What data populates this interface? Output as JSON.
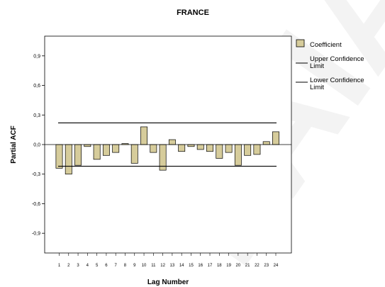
{
  "chart_data": {
    "type": "bar",
    "title": "FRANCE",
    "xlabel": "Lag Number",
    "ylabel": "Partial ACF",
    "ylim": [
      -1.1,
      1.1
    ],
    "yticks": [
      "0,9",
      "0,6",
      "0,3",
      "0,0",
      "-0,3",
      "-0,6",
      "-0,9"
    ],
    "ytick_values": [
      0.9,
      0.6,
      0.3,
      0.0,
      -0.3,
      -0.6,
      -0.9
    ],
    "categories": [
      "1",
      "2",
      "3",
      "4",
      "5",
      "6",
      "7",
      "8",
      "9",
      "10",
      "11",
      "12",
      "13",
      "14",
      "15",
      "16",
      "17",
      "18",
      "19",
      "20",
      "21",
      "22",
      "23",
      "24"
    ],
    "values": [
      -0.24,
      -0.3,
      -0.21,
      -0.02,
      -0.15,
      -0.11,
      -0.08,
      0.01,
      -0.19,
      0.18,
      -0.08,
      -0.26,
      0.05,
      -0.07,
      -0.02,
      -0.05,
      -0.07,
      -0.14,
      -0.08,
      -0.21,
      -0.11,
      -0.1,
      0.03,
      0.13
    ],
    "upper_confidence_limit": 0.22,
    "lower_confidence_limit": -0.22,
    "legend": {
      "position": "right",
      "entries": [
        "Coefficient",
        "Upper Confidence Limit",
        "Lower Confidence Limit"
      ]
    },
    "colors": {
      "bar_fill": "#d6cc9b",
      "bar_stroke": "#000000",
      "plot_background": "#ffffff"
    }
  },
  "watermark": "PAIA"
}
